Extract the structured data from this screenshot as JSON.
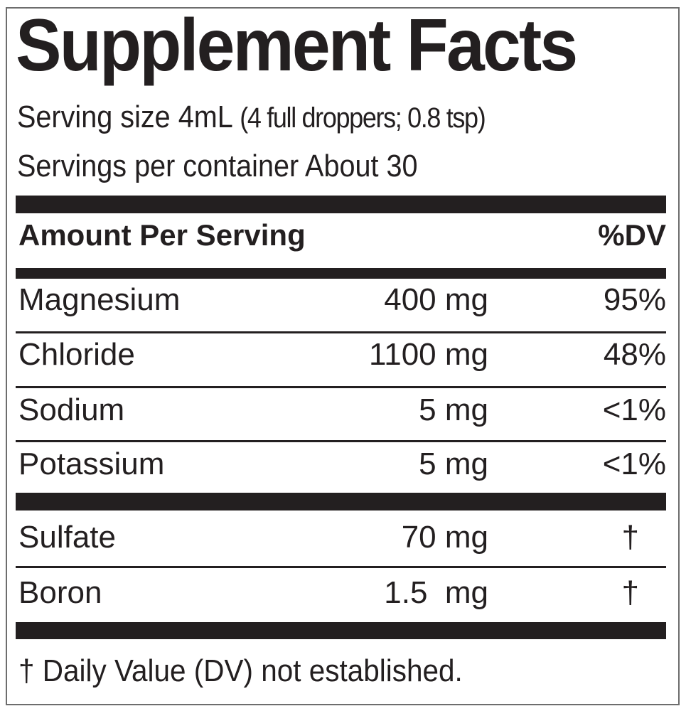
{
  "title": "Supplement Facts",
  "serving_size": {
    "label": "Serving size 4mL",
    "detail": "(4 full droppers; 0.8 tsp)"
  },
  "servings_per_container": "Servings per container About 30",
  "header": {
    "amount": "Amount Per Serving",
    "dv": "%DV"
  },
  "group1": [
    {
      "name": "Magnesium",
      "amount": "400 mg",
      "dv": "95%"
    },
    {
      "name": "Chloride",
      "amount": "1100 mg",
      "dv": "48%"
    },
    {
      "name": "Sodium",
      "amount": "5 mg",
      "dv": "<1%"
    },
    {
      "name": "Potassium",
      "amount": "5 mg",
      "dv": "<1%"
    }
  ],
  "group2": [
    {
      "name": "Sulfate",
      "amount": "70 mg",
      "dv": "†"
    },
    {
      "name": "Boron",
      "amount": "1.5  mg",
      "dv": "†"
    }
  ],
  "footnote": "† Daily Value (DV) not established."
}
